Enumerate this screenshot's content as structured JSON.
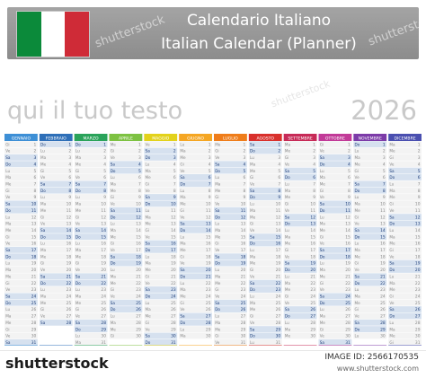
{
  "banner": {
    "title_it": "Calendario Italiano",
    "title_en": "Italian Calendar (Planner)",
    "flag_colors": [
      "#0b8a3a",
      "#ffffff",
      "#cf2b37"
    ]
  },
  "subtitle": "qui il tuo testo",
  "year": "2026",
  "calendar": {
    "weekday_abbr": [
      "Lu",
      "Ma",
      "Me",
      "Gi",
      "Ve",
      "Sa",
      "Do"
    ],
    "months": [
      {
        "name": "GENNAIO",
        "color": "#3d8fd6",
        "start_weekday": 3,
        "days": 31
      },
      {
        "name": "FEBBRAIO",
        "color": "#2e6fb8",
        "start_weekday": 6,
        "days": 28
      },
      {
        "name": "MARZO",
        "color": "#2aa35a",
        "start_weekday": 6,
        "days": 31
      },
      {
        "name": "APRILE",
        "color": "#7dc242",
        "start_weekday": 2,
        "days": 30
      },
      {
        "name": "MAGGIO",
        "color": "#e3d21b",
        "start_weekday": 4,
        "days": 31
      },
      {
        "name": "GIUGNO",
        "color": "#f5a623",
        "start_weekday": 0,
        "days": 30
      },
      {
        "name": "LUGLIO",
        "color": "#ef7d1a",
        "start_weekday": 2,
        "days": 31
      },
      {
        "name": "AGOSTO",
        "color": "#d9302c",
        "start_weekday": 5,
        "days": 31
      },
      {
        "name": "SETTEMBRE",
        "color": "#c72a57",
        "start_weekday": 1,
        "days": 30
      },
      {
        "name": "OTTOBRE",
        "color": "#c23a98",
        "start_weekday": 3,
        "days": 31
      },
      {
        "name": "NOVEMBRE",
        "color": "#7c3ba8",
        "start_weekday": 6,
        "days": 30
      },
      {
        "name": "DICEMBRE",
        "color": "#4a4fb0",
        "start_weekday": 1,
        "days": 31
      }
    ],
    "weekend_fill": "#d6e1ef",
    "weekday_fill": "#f3f3f3"
  },
  "watermark": "shutterstock",
  "footer": {
    "logo": "shutterstock",
    "image_id": "IMAGE ID: 2566170535",
    "site": "www.shutterstock.com"
  }
}
